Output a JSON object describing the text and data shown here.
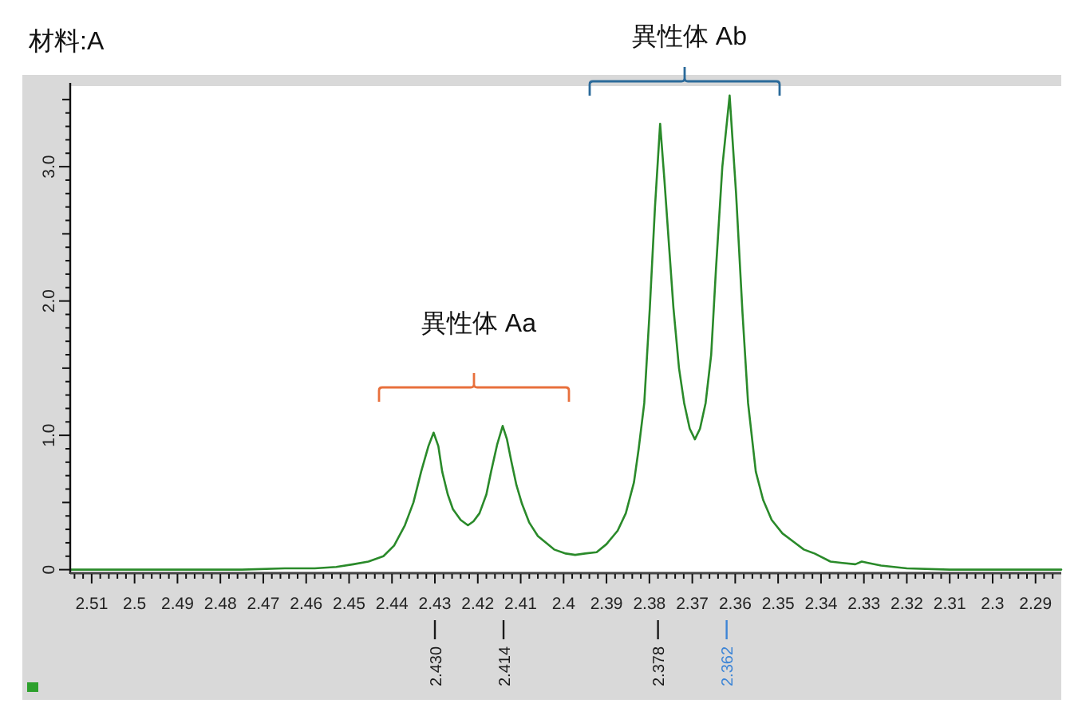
{
  "chart_data": {
    "type": "line",
    "title": "材料:A",
    "color": "#2a8a2a",
    "x": [
      2.515,
      2.49,
      2.475,
      2.465,
      2.458,
      2.453,
      2.449,
      2.4455,
      2.442,
      2.4395,
      2.437,
      2.435,
      2.4332,
      2.4315,
      2.4303,
      2.4292,
      2.4283,
      2.427,
      2.4258,
      2.424,
      2.4223,
      2.421,
      2.4196,
      2.418,
      2.4169,
      2.4155,
      2.4142,
      2.4132,
      2.4122,
      2.411,
      2.4097,
      2.408,
      2.406,
      2.4022,
      2.3995,
      2.3973,
      2.395,
      2.3923,
      2.39,
      2.3874,
      2.3855,
      2.3836,
      2.3825,
      2.3812,
      2.3799,
      2.3787,
      2.3775,
      2.3765,
      2.3754,
      2.3744,
      2.3731,
      2.3719,
      2.3706,
      2.3694,
      2.3682,
      2.3669,
      2.3656,
      2.3645,
      2.363,
      2.3613,
      2.3598,
      2.3583,
      2.357,
      2.3552,
      2.3535,
      2.3515,
      2.349,
      2.3465,
      2.344,
      2.3415,
      2.3378,
      2.335,
      2.332,
      2.3305,
      2.329,
      2.326,
      2.32,
      2.31,
      2.3,
      2.284
    ],
    "values": [
      0,
      0,
      0,
      0.01,
      0.01,
      0.02,
      0.04,
      0.06,
      0.1,
      0.18,
      0.33,
      0.5,
      0.73,
      0.92,
      1.02,
      0.92,
      0.73,
      0.56,
      0.45,
      0.37,
      0.33,
      0.36,
      0.42,
      0.56,
      0.73,
      0.93,
      1.07,
      0.97,
      0.81,
      0.63,
      0.49,
      0.35,
      0.25,
      0.15,
      0.12,
      0.11,
      0.12,
      0.13,
      0.19,
      0.29,
      0.42,
      0.65,
      0.9,
      1.24,
      1.95,
      2.7,
      3.32,
      2.9,
      2.4,
      1.95,
      1.5,
      1.24,
      1.05,
      0.97,
      1.05,
      1.24,
      1.6,
      2.23,
      3.0,
      3.53,
      2.8,
      1.91,
      1.24,
      0.73,
      0.52,
      0.37,
      0.27,
      0.21,
      0.15,
      0.12,
      0.06,
      0.05,
      0.04,
      0.06,
      0.05,
      0.03,
      0.01,
      0,
      0,
      0
    ],
    "xlim": [
      2.515,
      2.284
    ],
    "ylim": [
      -0.02,
      3.6
    ],
    "xticks": [
      {
        "value": 2.514,
        "label": null
      },
      {
        "value": 2.512,
        "label": null
      },
      2.51,
      {
        "value": 2.508,
        "label": null
      },
      {
        "value": 2.506,
        "label": null
      },
      {
        "value": 2.504,
        "label": null
      },
      {
        "value": 2.502,
        "label": null
      },
      2.5,
      {
        "value": 2.498,
        "label": null
      },
      {
        "value": 2.496,
        "label": null
      },
      {
        "value": 2.494,
        "label": null
      },
      {
        "value": 2.492,
        "label": null
      },
      2.49,
      {
        "value": 2.488,
        "label": null
      },
      {
        "value": 2.486,
        "label": null
      },
      {
        "value": 2.484,
        "label": null
      },
      {
        "value": 2.482,
        "label": null
      },
      2.48,
      {
        "value": 2.478,
        "label": null
      },
      {
        "value": 2.476,
        "label": null
      },
      {
        "value": 2.474,
        "label": null
      },
      {
        "value": 2.472,
        "label": null
      },
      2.47,
      {
        "value": 2.468,
        "label": null
      },
      {
        "value": 2.466,
        "label": null
      },
      {
        "value": 2.464,
        "label": null
      },
      {
        "value": 2.462,
        "label": null
      },
      2.46,
      {
        "value": 2.458,
        "label": null
      },
      {
        "value": 2.456,
        "label": null
      },
      {
        "value": 2.454,
        "label": null
      },
      {
        "value": 2.452,
        "label": null
      },
      2.45,
      {
        "value": 2.448,
        "label": null
      },
      {
        "value": 2.446,
        "label": null
      },
      {
        "value": 2.444,
        "label": null
      },
      {
        "value": 2.442,
        "label": null
      },
      2.44,
      {
        "value": 2.438,
        "label": null
      },
      {
        "value": 2.436,
        "label": null
      },
      {
        "value": 2.434,
        "label": null
      },
      {
        "value": 2.432,
        "label": null
      },
      2.43,
      {
        "value": 2.428,
        "label": null
      },
      {
        "value": 2.426,
        "label": null
      },
      {
        "value": 2.424,
        "label": null
      },
      {
        "value": 2.422,
        "label": null
      },
      2.42,
      {
        "value": 2.418,
        "label": null
      },
      {
        "value": 2.416,
        "label": null
      },
      {
        "value": 2.414,
        "label": null
      },
      {
        "value": 2.412,
        "label": null
      },
      2.41,
      {
        "value": 2.408,
        "label": null
      },
      {
        "value": 2.406,
        "label": null
      },
      {
        "value": 2.404,
        "label": null
      },
      {
        "value": 2.402,
        "label": null
      },
      2.4,
      {
        "value": 2.398,
        "label": null
      },
      {
        "value": 2.396,
        "label": null
      },
      {
        "value": 2.394,
        "label": null
      },
      {
        "value": 2.392,
        "label": null
      },
      2.39,
      {
        "value": 2.388,
        "label": null
      },
      {
        "value": 2.386,
        "label": null
      },
      {
        "value": 2.384,
        "label": null
      },
      {
        "value": 2.382,
        "label": null
      },
      2.38,
      {
        "value": 2.378,
        "label": null
      },
      {
        "value": 2.376,
        "label": null
      },
      {
        "value": 2.374,
        "label": null
      },
      {
        "value": 2.372,
        "label": null
      },
      2.37,
      {
        "value": 2.368,
        "label": null
      },
      {
        "value": 2.366,
        "label": null
      },
      {
        "value": 2.364,
        "label": null
      },
      {
        "value": 2.362,
        "label": null
      },
      2.36,
      {
        "value": 2.358,
        "label": null
      },
      {
        "value": 2.356,
        "label": null
      },
      {
        "value": 2.354,
        "label": null
      },
      {
        "value": 2.352,
        "label": null
      },
      2.35,
      {
        "value": 2.348,
        "label": null
      },
      {
        "value": 2.346,
        "label": null
      },
      {
        "value": 2.344,
        "label": null
      },
      {
        "value": 2.342,
        "label": null
      },
      2.34,
      {
        "value": 2.338,
        "label": null
      },
      {
        "value": 2.336,
        "label": null
      },
      {
        "value": 2.334,
        "label": null
      },
      {
        "value": 2.332,
        "label": null
      },
      2.33,
      {
        "value": 2.328,
        "label": null
      },
      {
        "value": 2.326,
        "label": null
      },
      {
        "value": 2.324,
        "label": null
      },
      {
        "value": 2.322,
        "label": null
      },
      2.32,
      {
        "value": 2.318,
        "label": null
      },
      {
        "value": 2.316,
        "label": null
      },
      {
        "value": 2.314,
        "label": null
      },
      {
        "value": 2.312,
        "label": null
      },
      2.31,
      {
        "value": 2.308,
        "label": null
      },
      {
        "value": 2.306,
        "label": null
      },
      {
        "value": 2.304,
        "label": null
      },
      {
        "value": 2.302,
        "label": null
      },
      2.3,
      {
        "value": 2.298,
        "label": null
      },
      {
        "value": 2.296,
        "label": null
      },
      {
        "value": 2.294,
        "label": null
      },
      {
        "value": 2.292,
        "label": null
      },
      2.29,
      {
        "value": 2.288,
        "label": null
      },
      {
        "value": 2.286,
        "label": null
      }
    ],
    "yticks": [
      0,
      {
        "value": 0.1,
        "label": null
      },
      {
        "value": 0.2,
        "label": null
      },
      {
        "value": 0.3,
        "label": null
      },
      {
        "value": 0.4,
        "label": null
      },
      {
        "value": 0.5,
        "label": null
      },
      {
        "value": 0.6,
        "label": null
      },
      {
        "value": 0.7,
        "label": null
      },
      {
        "value": 0.8,
        "label": null
      },
      {
        "value": 0.9,
        "label": null
      },
      {
        "value": 1,
        "label": "1.0"
      },
      {
        "value": 1.1,
        "label": null
      },
      {
        "value": 1.2,
        "label": null
      },
      {
        "value": 1.3,
        "label": null
      },
      {
        "value": 1.4,
        "label": null
      },
      {
        "value": 1.5,
        "label": null
      },
      {
        "value": 1.6,
        "label": null
      },
      {
        "value": 1.7,
        "label": null
      },
      {
        "value": 1.8,
        "label": null
      },
      {
        "value": 1.9,
        "label": null
      },
      {
        "value": 2,
        "label": "2.0"
      },
      {
        "value": 2.1,
        "label": null
      },
      {
        "value": 2.2,
        "label": null
      },
      {
        "value": 2.3,
        "label": null
      },
      {
        "value": 2.4,
        "label": null
      },
      {
        "value": 2.5,
        "label": null
      },
      {
        "value": 2.6,
        "label": null
      },
      {
        "value": 2.7,
        "label": null
      },
      {
        "value": 2.8,
        "label": null
      },
      {
        "value": 2.9,
        "label": null
      },
      {
        "value": 3,
        "label": "3.0"
      },
      {
        "value": 3.1,
        "label": null
      },
      {
        "value": 3.2,
        "label": null
      },
      {
        "value": 3.3,
        "label": null
      },
      {
        "value": 3.4,
        "label": null
      },
      {
        "value": 3.5,
        "label": null
      }
    ],
    "ref_lines": [
      {
        "axis": "x",
        "value": 2.43,
        "label": "2.430",
        "color": "#1a1a1a"
      },
      {
        "axis": "x",
        "value": 2.414,
        "label": "2.414",
        "color": "#1a1a1a"
      },
      {
        "axis": "x",
        "value": 2.378,
        "label": "2.378",
        "color": "#1a1a1a"
      },
      {
        "axis": "x",
        "value": 2.362,
        "label": "2.362",
        "color": "#3d85d6"
      }
    ],
    "annotations": [
      "異性体 Aa",
      "異性体 Ab"
    ]
  }
}
